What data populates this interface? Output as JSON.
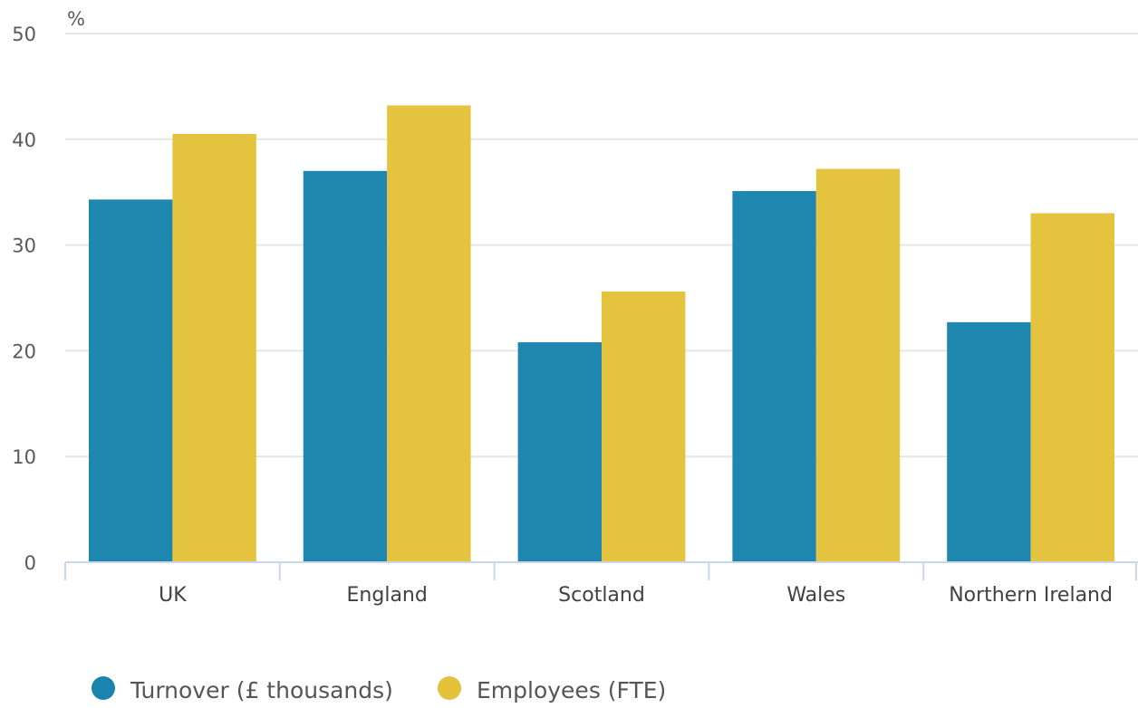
{
  "chart_data": {
    "type": "bar",
    "ylabel": "%",
    "ylim": [
      0,
      50
    ],
    "yticks": [
      0,
      10,
      20,
      30,
      40,
      50
    ],
    "grid": true,
    "legend_position": "bottom-left",
    "categories": [
      "UK",
      "England",
      "Scotland",
      "Wales",
      "Northern Ireland"
    ],
    "series": [
      {
        "name": "Turnover (£ thousands)",
        "color": "#1b84ad",
        "values": [
          34.3,
          37.0,
          20.8,
          35.1,
          22.7
        ]
      },
      {
        "name": "Employees (FTE)",
        "color": "#e3c23a",
        "values": [
          40.5,
          43.2,
          25.6,
          37.2,
          33.0
        ]
      }
    ]
  }
}
